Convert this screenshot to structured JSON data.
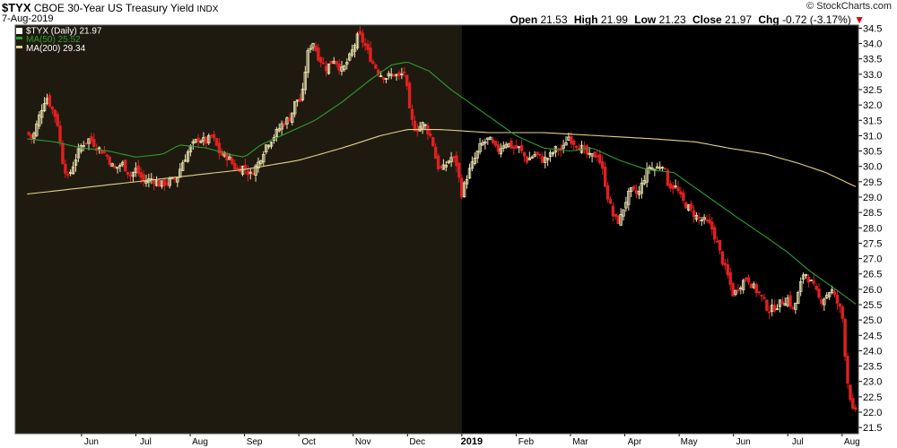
{
  "header": {
    "symbol": "$TYX",
    "name": "CBOE 30-Year US Treasury Yield",
    "exchange": "INDX",
    "date": "7-Aug-2019",
    "logo": "© StockCharts.com",
    "open_label": "Open",
    "open": "21.53",
    "high_label": "High",
    "high": "21.99",
    "low_label": "Low",
    "low": "21.23",
    "close_label": "Close",
    "close": "21.97",
    "chg_label": "Chg",
    "chg": "-0.72 (-3.17%)",
    "down_arrow": "▼"
  },
  "legend": [
    {
      "text": "$TYX (Daily) 21.97",
      "color": "#ffffff"
    },
    {
      "text": "MA(50) 25.52",
      "color": "#2e9e2e"
    },
    {
      "text": "MA(200) 29.34",
      "color": "#e5cf8a"
    }
  ],
  "colors": {
    "background": "#000000",
    "shade_2018": "#1f1a10",
    "up": "#f0e6b4",
    "down": "#e02020",
    "ma50": "#2e9e2e",
    "ma200": "#e5cf8a",
    "grid": "#2a2a2a"
  },
  "chart_data": {
    "type": "candlestick",
    "series_name": "$TYX (Daily) 21.97",
    "ylim": [
      21.3,
      34.6
    ],
    "y_axis_side": "right",
    "y_ticks": [
      "21.5",
      "22.0",
      "22.5",
      "23.0",
      "23.5",
      "24.0",
      "24.5",
      "25.0",
      "25.5",
      "26.0",
      "26.5",
      "27.0",
      "27.5",
      "28.0",
      "28.5",
      "29.0",
      "29.5",
      "30.0",
      "30.5",
      "31.0",
      "31.5",
      "32.0",
      "32.5",
      "33.0",
      "33.5",
      "34.0",
      "34.5"
    ],
    "x_ticks": [
      {
        "label": "Jun",
        "month": 1
      },
      {
        "label": "Jul",
        "month": 2
      },
      {
        "label": "Aug",
        "month": 3
      },
      {
        "label": "Sep",
        "month": 4
      },
      {
        "label": "Oct",
        "month": 5
      },
      {
        "label": "Nov",
        "month": 6
      },
      {
        "label": "Dec",
        "month": 7
      },
      {
        "label": "2019",
        "month": 8,
        "bold": true
      },
      {
        "label": "Feb",
        "month": 9
      },
      {
        "label": "Mar",
        "month": 10
      },
      {
        "label": "Apr",
        "month": 11
      },
      {
        "label": "May",
        "month": 12
      },
      {
        "label": "Jun",
        "month": 13
      },
      {
        "label": "Jul",
        "month": 14
      },
      {
        "label": "Aug",
        "month": 15
      }
    ],
    "shaded_until_month": 8,
    "last_month": 15.25,
    "close_path": [
      [
        0.0,
        31.1
      ],
      [
        0.1,
        30.9
      ],
      [
        0.25,
        31.8
      ],
      [
        0.35,
        32.3
      ],
      [
        0.45,
        31.9
      ],
      [
        0.55,
        31.5
      ],
      [
        0.65,
        30.2
      ],
      [
        0.75,
        29.6
      ],
      [
        0.9,
        30.3
      ],
      [
        1.0,
        30.7
      ],
      [
        1.15,
        30.9
      ],
      [
        1.3,
        30.6
      ],
      [
        1.45,
        30.4
      ],
      [
        1.6,
        29.9
      ],
      [
        1.75,
        30.1
      ],
      [
        1.9,
        29.7
      ],
      [
        2.0,
        29.9
      ],
      [
        2.15,
        29.5
      ],
      [
        2.3,
        29.6
      ],
      [
        2.45,
        29.4
      ],
      [
        2.6,
        29.5
      ],
      [
        2.75,
        29.6
      ],
      [
        2.85,
        30.1
      ],
      [
        3.0,
        30.6
      ],
      [
        3.15,
        30.9
      ],
      [
        3.3,
        30.8
      ],
      [
        3.4,
        31.0
      ],
      [
        3.55,
        30.4
      ],
      [
        3.7,
        30.3
      ],
      [
        3.85,
        29.9
      ],
      [
        4.0,
        30.0
      ],
      [
        4.1,
        29.7
      ],
      [
        4.25,
        30.1
      ],
      [
        4.4,
        30.7
      ],
      [
        4.55,
        31.0
      ],
      [
        4.7,
        31.4
      ],
      [
        4.85,
        31.6
      ],
      [
        4.95,
        32.2
      ],
      [
        5.05,
        32.1
      ],
      [
        5.15,
        33.6
      ],
      [
        5.25,
        34.1
      ],
      [
        5.35,
        33.6
      ],
      [
        5.5,
        33.2
      ],
      [
        5.65,
        33.5
      ],
      [
        5.8,
        33.1
      ],
      [
        5.95,
        33.6
      ],
      [
        6.1,
        34.3
      ],
      [
        6.2,
        34.0
      ],
      [
        6.35,
        33.4
      ],
      [
        6.5,
        33.0
      ],
      [
        6.6,
        32.9
      ],
      [
        6.75,
        33.0
      ],
      [
        6.85,
        32.9
      ],
      [
        6.95,
        33.1
      ],
      [
        7.05,
        31.6
      ],
      [
        7.15,
        31.2
      ],
      [
        7.3,
        31.4
      ],
      [
        7.45,
        30.9
      ],
      [
        7.55,
        30.0
      ],
      [
        7.65,
        29.9
      ],
      [
        7.8,
        30.3
      ],
      [
        7.9,
        30.1
      ],
      [
        8.0,
        29.1
      ],
      [
        8.1,
        29.7
      ],
      [
        8.2,
        30.1
      ],
      [
        8.35,
        30.7
      ],
      [
        8.5,
        30.9
      ],
      [
        8.65,
        30.5
      ],
      [
        8.8,
        30.8
      ],
      [
        8.95,
        30.6
      ],
      [
        9.05,
        30.6
      ],
      [
        9.2,
        30.2
      ],
      [
        9.35,
        30.4
      ],
      [
        9.5,
        30.2
      ],
      [
        9.6,
        30.3
      ],
      [
        9.75,
        30.6
      ],
      [
        9.85,
        30.5
      ],
      [
        9.95,
        31.0
      ],
      [
        10.05,
        30.8
      ],
      [
        10.2,
        30.6
      ],
      [
        10.35,
        30.3
      ],
      [
        10.5,
        30.4
      ],
      [
        10.6,
        29.8
      ],
      [
        10.7,
        28.9
      ],
      [
        10.8,
        28.3
      ],
      [
        10.9,
        28.2
      ],
      [
        11.0,
        28.8
      ],
      [
        11.1,
        29.2
      ],
      [
        11.25,
        29.1
      ],
      [
        11.35,
        29.6
      ],
      [
        11.45,
        30.0
      ],
      [
        11.55,
        29.9
      ],
      [
        11.7,
        30.1
      ],
      [
        11.8,
        29.4
      ],
      [
        11.95,
        29.3
      ],
      [
        12.05,
        28.9
      ],
      [
        12.2,
        28.6
      ],
      [
        12.35,
        28.3
      ],
      [
        12.5,
        28.2
      ],
      [
        12.6,
        28.0
      ],
      [
        12.7,
        27.5
      ],
      [
        12.8,
        26.9
      ],
      [
        12.9,
        26.4
      ],
      [
        13.0,
        25.8
      ],
      [
        13.1,
        26.1
      ],
      [
        13.25,
        26.4
      ],
      [
        13.35,
        26.1
      ],
      [
        13.5,
        25.8
      ],
      [
        13.65,
        25.3
      ],
      [
        13.75,
        25.4
      ],
      [
        13.9,
        25.6
      ],
      [
        14.0,
        25.7
      ],
      [
        14.1,
        25.3
      ],
      [
        14.2,
        25.9
      ],
      [
        14.3,
        26.6
      ],
      [
        14.4,
        26.3
      ],
      [
        14.5,
        26.0
      ],
      [
        14.6,
        25.6
      ],
      [
        14.7,
        25.8
      ],
      [
        14.8,
        26.0
      ],
      [
        14.9,
        25.6
      ],
      [
        15.0,
        25.2
      ],
      [
        15.05,
        24.0
      ],
      [
        15.1,
        23.0
      ],
      [
        15.15,
        22.5
      ],
      [
        15.2,
        22.0
      ],
      [
        15.25,
        21.97
      ]
    ],
    "ma50": [
      [
        0.0,
        30.9
      ],
      [
        0.5,
        30.8
      ],
      [
        1.0,
        30.6
      ],
      [
        1.5,
        30.5
      ],
      [
        2.0,
        30.3
      ],
      [
        2.5,
        30.4
      ],
      [
        2.8,
        30.7
      ],
      [
        3.3,
        30.6
      ],
      [
        3.7,
        30.4
      ],
      [
        4.0,
        30.3
      ],
      [
        4.3,
        30.7
      ],
      [
        4.8,
        31.1
      ],
      [
        5.3,
        31.5
      ],
      [
        5.8,
        32.1
      ],
      [
        6.3,
        32.8
      ],
      [
        6.7,
        33.3
      ],
      [
        7.0,
        33.4
      ],
      [
        7.4,
        33.1
      ],
      [
        7.8,
        32.5
      ],
      [
        8.2,
        32.0
      ],
      [
        8.6,
        31.5
      ],
      [
        9.0,
        31.0
      ],
      [
        9.5,
        30.6
      ],
      [
        10.0,
        30.5
      ],
      [
        10.4,
        30.6
      ],
      [
        10.9,
        30.2
      ],
      [
        11.4,
        29.9
      ],
      [
        11.9,
        29.8
      ],
      [
        12.3,
        29.3
      ],
      [
        12.7,
        28.8
      ],
      [
        13.1,
        28.3
      ],
      [
        13.6,
        27.7
      ],
      [
        14.0,
        27.2
      ],
      [
        14.4,
        26.6
      ],
      [
        14.8,
        26.1
      ],
      [
        15.25,
        25.52
      ]
    ],
    "ma200": [
      [
        0.0,
        29.1
      ],
      [
        1.0,
        29.3
      ],
      [
        2.0,
        29.5
      ],
      [
        3.0,
        29.7
      ],
      [
        4.0,
        29.9
      ],
      [
        5.0,
        30.2
      ],
      [
        5.8,
        30.6
      ],
      [
        6.5,
        31.0
      ],
      [
        7.0,
        31.2
      ],
      [
        7.6,
        31.2
      ],
      [
        8.5,
        31.1
      ],
      [
        9.5,
        31.1
      ],
      [
        10.5,
        31.0
      ],
      [
        11.5,
        30.9
      ],
      [
        12.3,
        30.8
      ],
      [
        12.9,
        30.6
      ],
      [
        13.6,
        30.4
      ],
      [
        14.2,
        30.1
      ],
      [
        14.7,
        29.8
      ],
      [
        15.25,
        29.34
      ]
    ]
  }
}
